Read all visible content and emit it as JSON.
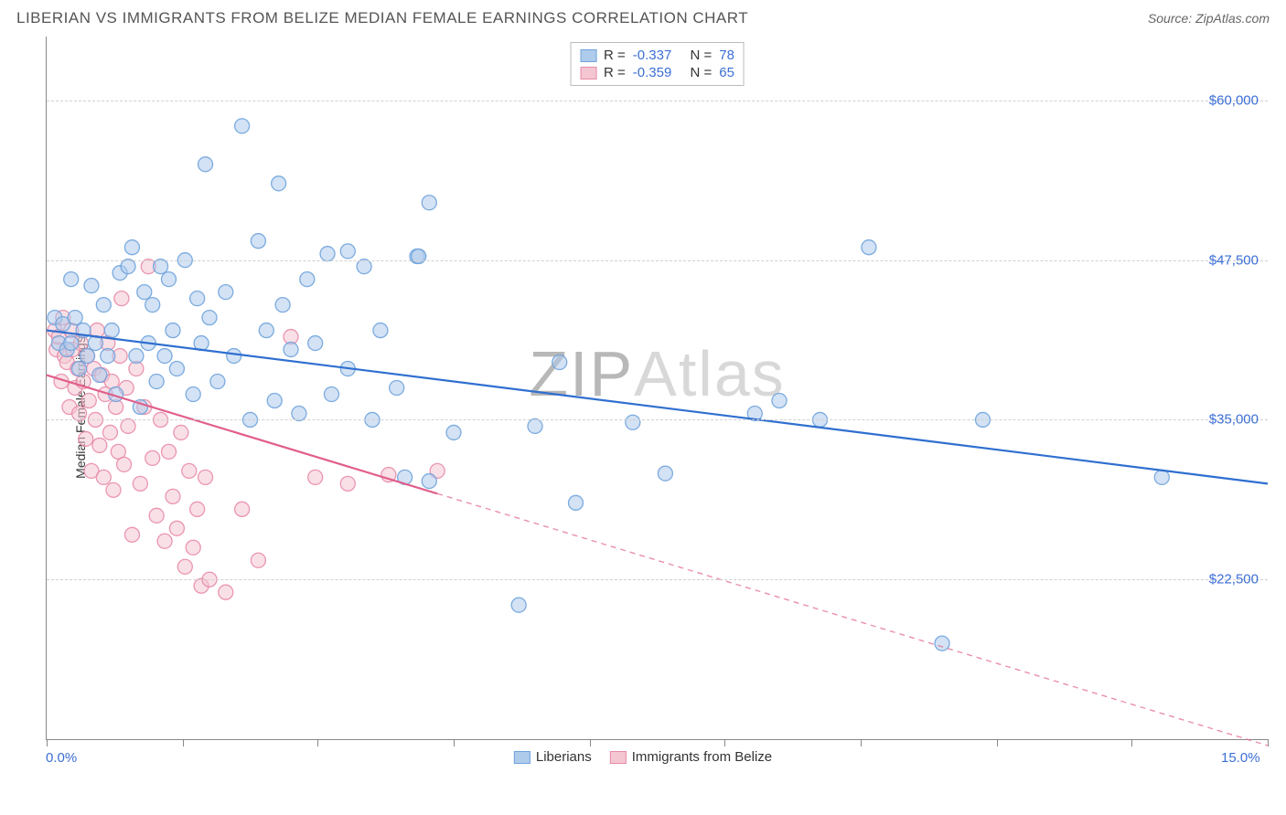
{
  "header": {
    "title": "LIBERIAN VS IMMIGRANTS FROM BELIZE MEDIAN FEMALE EARNINGS CORRELATION CHART",
    "source_prefix": "Source: ",
    "source_name": "ZipAtlas.com"
  },
  "watermark": {
    "part1": "ZIP",
    "part2": "Atlas"
  },
  "chart": {
    "type": "scatter",
    "ylabel": "Median Female Earnings",
    "xlim": [
      0,
      15
    ],
    "ylim": [
      10000,
      65000
    ],
    "x_tick_positions": [
      0,
      1.67,
      3.33,
      5.0,
      6.67,
      8.33,
      10.0,
      11.67,
      13.33,
      15.0
    ],
    "x_axis_label_left": "0.0%",
    "x_axis_label_right": "15.0%",
    "y_gridlines": [
      22500,
      35000,
      47500,
      60000
    ],
    "y_tick_labels": [
      "$22,500",
      "$35,000",
      "$47,500",
      "$60,000"
    ],
    "grid_color": "#d0d0d0",
    "axis_label_color": "#3b6fd6",
    "background_color": "#ffffff",
    "marker_radius": 8,
    "marker_opacity": 0.55,
    "marker_stroke_opacity": 0.9,
    "line_width": 2.2,
    "dash_pattern": "6 5",
    "series": [
      {
        "id": "liberians",
        "label": "Liberians",
        "color_fill": "#aecbeb",
        "color_stroke": "#6fa3dd",
        "line_color": "#2f6fd0",
        "R": "-0.337",
        "N": "78",
        "trend": {
          "x1": 0.0,
          "y1": 42000,
          "x2": 15.0,
          "y2": 30000
        },
        "solid_x_end": 15.0,
        "points": [
          [
            0.1,
            43000
          ],
          [
            0.15,
            41000
          ],
          [
            0.2,
            42500
          ],
          [
            0.25,
            40500
          ],
          [
            0.3,
            46000
          ],
          [
            0.3,
            41000
          ],
          [
            0.35,
            43000
          ],
          [
            0.4,
            39000
          ],
          [
            0.45,
            42000
          ],
          [
            0.5,
            40000
          ],
          [
            0.55,
            45500
          ],
          [
            0.6,
            41000
          ],
          [
            0.65,
            38500
          ],
          [
            0.7,
            44000
          ],
          [
            0.75,
            40000
          ],
          [
            0.8,
            42000
          ],
          [
            0.85,
            37000
          ],
          [
            0.9,
            46500
          ],
          [
            1.0,
            47000
          ],
          [
            1.05,
            48500
          ],
          [
            1.1,
            40000
          ],
          [
            1.15,
            36000
          ],
          [
            1.2,
            45000
          ],
          [
            1.25,
            41000
          ],
          [
            1.3,
            44000
          ],
          [
            1.35,
            38000
          ],
          [
            1.4,
            47000
          ],
          [
            1.45,
            40000
          ],
          [
            1.5,
            46000
          ],
          [
            1.55,
            42000
          ],
          [
            1.6,
            39000
          ],
          [
            1.7,
            47500
          ],
          [
            1.8,
            37000
          ],
          [
            1.85,
            44500
          ],
          [
            1.9,
            41000
          ],
          [
            1.95,
            55000
          ],
          [
            2.0,
            43000
          ],
          [
            2.1,
            38000
          ],
          [
            2.2,
            45000
          ],
          [
            2.3,
            40000
          ],
          [
            2.4,
            58000
          ],
          [
            2.5,
            35000
          ],
          [
            2.6,
            49000
          ],
          [
            2.7,
            42000
          ],
          [
            2.8,
            36500
          ],
          [
            2.85,
            53500
          ],
          [
            2.9,
            44000
          ],
          [
            3.0,
            40500
          ],
          [
            3.1,
            35500
          ],
          [
            3.2,
            46000
          ],
          [
            3.3,
            41000
          ],
          [
            3.45,
            48000
          ],
          [
            3.5,
            37000
          ],
          [
            3.7,
            48200
          ],
          [
            3.7,
            39000
          ],
          [
            3.9,
            47000
          ],
          [
            4.0,
            35000
          ],
          [
            4.1,
            42000
          ],
          [
            4.3,
            37500
          ],
          [
            4.4,
            30500
          ],
          [
            4.55,
            47800
          ],
          [
            4.57,
            47800
          ],
          [
            4.7,
            52000
          ],
          [
            4.7,
            30200
          ],
          [
            5.0,
            34000
          ],
          [
            5.8,
            20500
          ],
          [
            6.0,
            34500
          ],
          [
            6.3,
            39500
          ],
          [
            6.5,
            28500
          ],
          [
            7.2,
            34800
          ],
          [
            7.6,
            30800
          ],
          [
            8.7,
            35500
          ],
          [
            9.0,
            36500
          ],
          [
            9.5,
            35000
          ],
          [
            10.1,
            48500
          ],
          [
            11.0,
            17500
          ],
          [
            11.5,
            35000
          ],
          [
            13.7,
            30500
          ]
        ]
      },
      {
        "id": "belize",
        "label": "Immigrants from Belize",
        "color_fill": "#f4c6d2",
        "color_stroke": "#e88ba8",
        "line_color": "#e15f8a",
        "R": "-0.359",
        "N": "65",
        "trend": {
          "x1": 0.0,
          "y1": 38500,
          "x2": 15.0,
          "y2": 9500
        },
        "solid_x_end": 4.8,
        "points": [
          [
            0.1,
            42000
          ],
          [
            0.12,
            40500
          ],
          [
            0.15,
            41500
          ],
          [
            0.18,
            38000
          ],
          [
            0.2,
            43000
          ],
          [
            0.22,
            40000
          ],
          [
            0.25,
            39500
          ],
          [
            0.28,
            36000
          ],
          [
            0.3,
            42000
          ],
          [
            0.32,
            40500
          ],
          [
            0.35,
            37500
          ],
          [
            0.38,
            39000
          ],
          [
            0.4,
            35500
          ],
          [
            0.42,
            41000
          ],
          [
            0.45,
            38000
          ],
          [
            0.48,
            33500
          ],
          [
            0.5,
            40000
          ],
          [
            0.52,
            36500
          ],
          [
            0.55,
            31000
          ],
          [
            0.58,
            39000
          ],
          [
            0.6,
            35000
          ],
          [
            0.62,
            42000
          ],
          [
            0.65,
            33000
          ],
          [
            0.68,
            38500
          ],
          [
            0.7,
            30500
          ],
          [
            0.72,
            37000
          ],
          [
            0.75,
            41000
          ],
          [
            0.78,
            34000
          ],
          [
            0.8,
            38000
          ],
          [
            0.82,
            29500
          ],
          [
            0.85,
            36000
          ],
          [
            0.88,
            32500
          ],
          [
            0.9,
            40000
          ],
          [
            0.92,
            44500
          ],
          [
            0.95,
            31500
          ],
          [
            0.98,
            37500
          ],
          [
            1.0,
            34500
          ],
          [
            1.05,
            26000
          ],
          [
            1.1,
            39000
          ],
          [
            1.15,
            30000
          ],
          [
            1.2,
            36000
          ],
          [
            1.25,
            47000
          ],
          [
            1.3,
            32000
          ],
          [
            1.35,
            27500
          ],
          [
            1.4,
            35000
          ],
          [
            1.45,
            25500
          ],
          [
            1.5,
            32500
          ],
          [
            1.55,
            29000
          ],
          [
            1.6,
            26500
          ],
          [
            1.65,
            34000
          ],
          [
            1.7,
            23500
          ],
          [
            1.75,
            31000
          ],
          [
            1.8,
            25000
          ],
          [
            1.85,
            28000
          ],
          [
            1.9,
            22000
          ],
          [
            1.95,
            30500
          ],
          [
            2.0,
            22500
          ],
          [
            2.2,
            21500
          ],
          [
            2.4,
            28000
          ],
          [
            2.6,
            24000
          ],
          [
            3.0,
            41500
          ],
          [
            3.3,
            30500
          ],
          [
            3.7,
            30000
          ],
          [
            4.2,
            30700
          ],
          [
            4.8,
            31000
          ]
        ]
      }
    ],
    "legend_top": {
      "r_label": "R =",
      "n_label": "N ="
    },
    "legend_bottom": {
      "items": [
        "liberians",
        "belize"
      ]
    }
  }
}
